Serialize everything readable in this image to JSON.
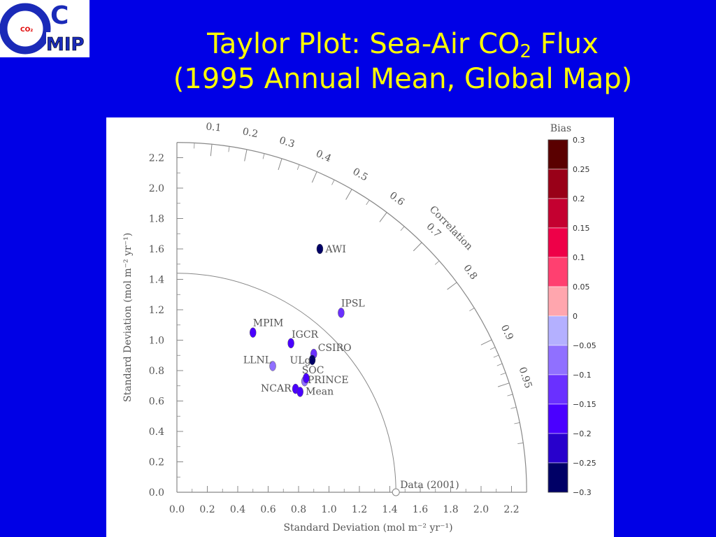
{
  "logo": {
    "letter_o": "O",
    "letter_c": "C",
    "small": "CO₂",
    "mip": "MIP"
  },
  "title": {
    "line1_main": "Taylor Plot: Sea-Air CO",
    "line1_sub": "2",
    "line1_tail": " Flux",
    "line2": "(1995 Annual Mean, Global Map)"
  },
  "colors": {
    "background": "#0000e6",
    "title": "#ffff00",
    "axis": "#888888"
  },
  "chart_data": {
    "type": "scatter",
    "subtype": "taylor-diagram",
    "xlabel": "Standard Deviation (mol m⁻² yr⁻¹)",
    "ylabel": "Standard Deviation (mol m⁻² yr⁻¹)",
    "xlim": [
      0,
      2.3
    ],
    "ylim": [
      0,
      2.3
    ],
    "x_ticks": [
      "0.0",
      "0.2",
      "0.4",
      "0.6",
      "0.8",
      "1.0",
      "1.2",
      "1.4",
      "1.6",
      "1.8",
      "2.0",
      "2.2"
    ],
    "y_ticks": [
      "0.0",
      "0.2",
      "0.4",
      "0.6",
      "0.8",
      "1.0",
      "1.2",
      "1.4",
      "1.6",
      "1.8",
      "2.0",
      "2.2"
    ],
    "correlation_label": "Correlation",
    "correlation_ticks": [
      "0.1",
      "0.2",
      "0.3",
      "0.4",
      "0.5",
      "0.6",
      "0.7",
      "0.8",
      "0.9",
      "0.95"
    ],
    "reference": {
      "label": "Data (2001)",
      "std": 1.44
    },
    "points": [
      {
        "label": "AWI",
        "x": 0.94,
        "y": 1.6,
        "bias": -0.3
      },
      {
        "label": "IPSL",
        "x": 1.08,
        "y": 1.18,
        "bias": -0.1
      },
      {
        "label": "MPIM",
        "x": 0.5,
        "y": 1.05,
        "bias": -0.15
      },
      {
        "label": "IGCR",
        "x": 0.75,
        "y": 0.98,
        "bias": -0.15
      },
      {
        "label": "CSIRO",
        "x": 0.9,
        "y": 0.91,
        "bias": -0.1
      },
      {
        "label": "LLNL",
        "x": 0.63,
        "y": 0.83,
        "bias": -0.05
      },
      {
        "label": "ULg",
        "x": 0.89,
        "y": 0.87,
        "bias": -0.3
      },
      {
        "label": "SOC",
        "x": 0.84,
        "y": 0.73,
        "bias": -0.05
      },
      {
        "label": "PRINCE",
        "x": 0.85,
        "y": 0.75,
        "bias": -0.15
      },
      {
        "label": "NCAR",
        "x": 0.78,
        "y": 0.68,
        "bias": -0.15
      },
      {
        "label": "Mean",
        "x": 0.81,
        "y": 0.66,
        "bias": -0.15
      }
    ],
    "colorbar": {
      "title": "Bias",
      "labels": [
        "0.3",
        "0.25",
        "0.2",
        "0.15",
        "0.1",
        "0.05",
        "0",
        "−0.05",
        "−0.1",
        "−0.15",
        "−0.2",
        "−0.25",
        "−0.3"
      ],
      "colors": [
        "#5a0000",
        "#990018",
        "#c40030",
        "#ee0048",
        "#ff4070",
        "#ffa6ae",
        "#b4b0ff",
        "#9070ff",
        "#6a30ff",
        "#4a00ff",
        "#2800cc",
        "#000066"
      ]
    }
  }
}
